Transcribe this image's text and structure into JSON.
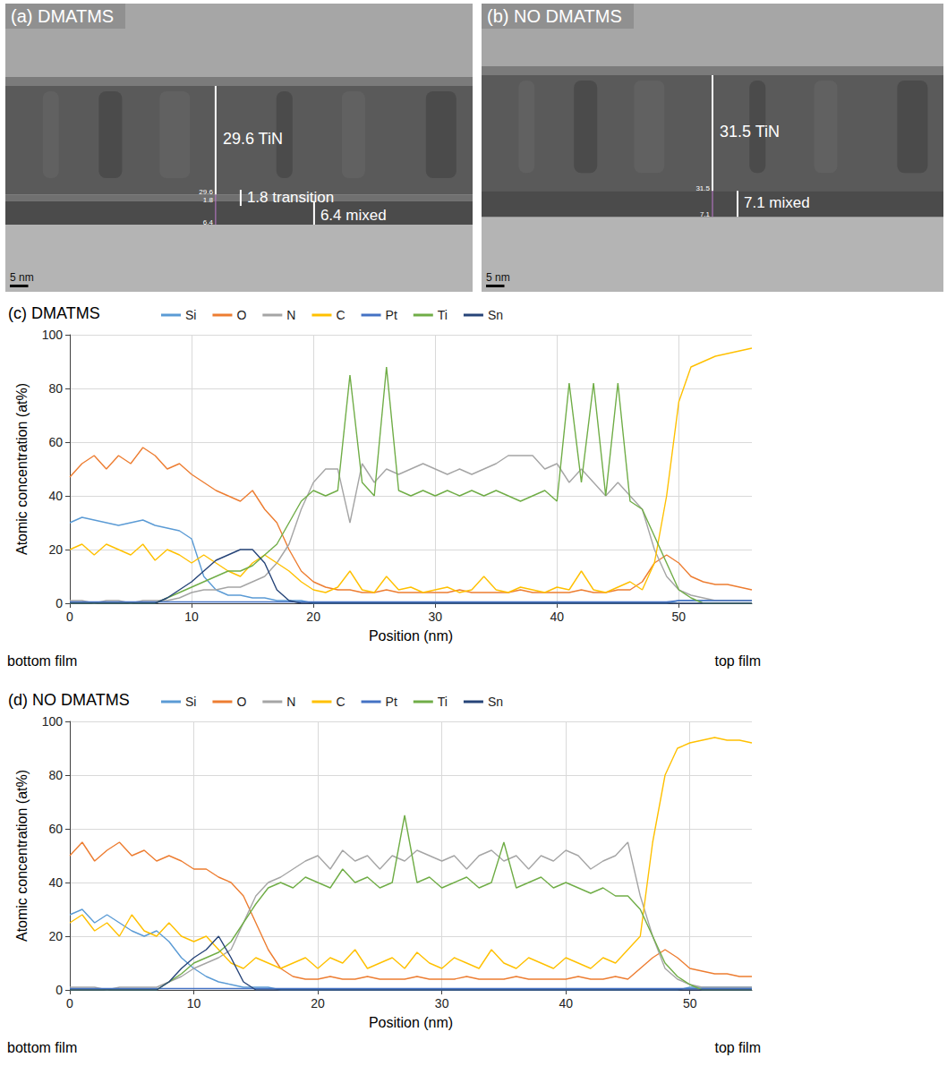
{
  "images": [
    {
      "title": "(a) DMATMS",
      "scale_bar": {
        "value": 5,
        "label": "5 nm"
      },
      "layers": [
        {
          "label": "29.6 TiN",
          "thickness": 29.6
        },
        {
          "label": "1.8 transition",
          "thickness": 1.8
        },
        {
          "label": "6.4 mixed",
          "thickness": 6.4
        }
      ]
    },
    {
      "title": "(b) NO DMATMS",
      "scale_bar": {
        "value": 5,
        "label": "5 nm"
      },
      "layers": [
        {
          "label": "31.5 TiN",
          "thickness": 31.5
        },
        {
          "label": "7.1 mixed",
          "thickness": 7.1
        }
      ]
    }
  ],
  "chart_data": [
    {
      "type": "line",
      "title": "(c) DMATMS",
      "x_label": "Position (nm)",
      "y_label": "Atomic concentration (at%)",
      "annotations": [
        "bottom film",
        "top film"
      ],
      "xlim": [
        0,
        56
      ],
      "xticks": [
        0,
        10,
        20,
        30,
        40,
        50
      ],
      "ylim": [
        0,
        100
      ],
      "yticks": [
        0,
        20,
        40,
        60,
        80,
        100
      ],
      "grid": true,
      "legend": "top",
      "x": [
        0,
        1,
        2,
        3,
        4,
        5,
        6,
        7,
        8,
        9,
        10,
        11,
        12,
        13,
        14,
        15,
        16,
        17,
        18,
        19,
        20,
        21,
        22,
        23,
        24,
        25,
        26,
        27,
        28,
        29,
        30,
        31,
        32,
        33,
        34,
        35,
        36,
        37,
        38,
        39,
        40,
        41,
        42,
        43,
        44,
        45,
        46,
        47,
        48,
        49,
        50,
        51,
        52,
        53,
        54,
        55,
        56
      ],
      "series": [
        {
          "name": "Si",
          "color": "#5b9bd5",
          "values": [
            30,
            32,
            31,
            30,
            29,
            30,
            31,
            29,
            28,
            27,
            24,
            10,
            5,
            3,
            3,
            2,
            2,
            1,
            1,
            1,
            0,
            0,
            0,
            0,
            0,
            0,
            0,
            0,
            0,
            0,
            0,
            0,
            0,
            0,
            0,
            0,
            0,
            0,
            0,
            0,
            0,
            0,
            0,
            0,
            0,
            0,
            0,
            0,
            0,
            0,
            1,
            1,
            1,
            1,
            1,
            1,
            1
          ]
        },
        {
          "name": "O",
          "color": "#ed7d31",
          "values": [
            47,
            52,
            55,
            50,
            55,
            52,
            58,
            55,
            50,
            52,
            48,
            45,
            42,
            40,
            38,
            42,
            35,
            30,
            20,
            12,
            8,
            6,
            5,
            5,
            4,
            4,
            5,
            4,
            4,
            4,
            4,
            4,
            5,
            4,
            4,
            4,
            4,
            5,
            4,
            4,
            4,
            4,
            5,
            4,
            4,
            5,
            5,
            8,
            15,
            18,
            15,
            10,
            8,
            7,
            7,
            6,
            5
          ]
        },
        {
          "name": "N",
          "color": "#a5a5a5",
          "values": [
            1,
            1,
            0,
            1,
            1,
            0,
            1,
            1,
            1,
            2,
            4,
            5,
            5,
            6,
            6,
            8,
            10,
            15,
            22,
            35,
            45,
            50,
            50,
            30,
            52,
            45,
            50,
            48,
            50,
            52,
            50,
            48,
            50,
            48,
            50,
            52,
            55,
            55,
            55,
            50,
            52,
            45,
            50,
            45,
            40,
            45,
            40,
            35,
            20,
            10,
            5,
            3,
            2,
            1,
            1,
            1,
            1
          ]
        },
        {
          "name": "C",
          "color": "#ffc000",
          "values": [
            20,
            22,
            18,
            22,
            20,
            18,
            22,
            16,
            20,
            18,
            15,
            18,
            15,
            12,
            10,
            15,
            18,
            15,
            12,
            8,
            5,
            4,
            6,
            12,
            5,
            4,
            10,
            5,
            6,
            4,
            5,
            6,
            4,
            5,
            10,
            5,
            4,
            6,
            5,
            4,
            6,
            5,
            12,
            5,
            4,
            6,
            8,
            5,
            15,
            40,
            75,
            88,
            90,
            92,
            93,
            94,
            95
          ]
        },
        {
          "name": "Pt",
          "color": "#4472c4",
          "values": [
            0.5,
            0.5,
            0.5,
            0.5,
            0.5,
            0.5,
            0.5,
            0.5,
            0.5,
            0.5,
            0.5,
            0.5,
            0.5,
            0.5,
            0.5,
            0.5,
            0.5,
            0.5,
            0.5,
            0.5,
            0.5,
            0.5,
            0.5,
            0.5,
            0.5,
            0.5,
            0.5,
            0.5,
            0.5,
            0.5,
            0.5,
            0.5,
            0.5,
            0.5,
            0.5,
            0.5,
            0.5,
            0.5,
            0.5,
            0.5,
            0.5,
            0.5,
            0.5,
            0.5,
            0.5,
            0.5,
            0.5,
            0.5,
            0.5,
            0.5,
            1,
            1,
            1,
            1,
            1,
            1,
            1
          ]
        },
        {
          "name": "Ti",
          "color": "#70ad47",
          "values": [
            0,
            0,
            0,
            0,
            0,
            0,
            0,
            0,
            2,
            4,
            6,
            8,
            10,
            12,
            12,
            14,
            18,
            22,
            30,
            38,
            42,
            40,
            42,
            85,
            45,
            40,
            88,
            42,
            40,
            42,
            40,
            42,
            40,
            42,
            40,
            42,
            40,
            38,
            40,
            42,
            38,
            82,
            45,
            82,
            40,
            82,
            38,
            35,
            25,
            15,
            5,
            2,
            0,
            0,
            0,
            0,
            0
          ]
        },
        {
          "name": "Sn",
          "color": "#264478",
          "values": [
            0,
            0,
            0,
            0,
            0,
            0,
            0,
            0,
            2,
            5,
            8,
            12,
            16,
            18,
            20,
            20,
            15,
            5,
            1,
            0,
            0,
            0,
            0,
            0,
            0,
            0,
            0,
            0,
            0,
            0,
            0,
            0,
            0,
            0,
            0,
            0,
            0,
            0,
            0,
            0,
            0,
            0,
            0,
            0,
            0,
            0,
            0,
            0,
            0,
            0,
            0,
            0,
            0,
            0,
            0,
            0,
            0
          ]
        }
      ]
    },
    {
      "type": "line",
      "title": "(d) NO DMATMS",
      "x_label": "Position (nm)",
      "y_label": "Atomic concentration (at%)",
      "annotations": [
        "bottom film",
        "top film"
      ],
      "xlim": [
        0,
        55
      ],
      "xticks": [
        0,
        10,
        20,
        30,
        40,
        50
      ],
      "ylim": [
        0,
        100
      ],
      "yticks": [
        0,
        20,
        40,
        60,
        80,
        100
      ],
      "grid": true,
      "legend": "top",
      "x": [
        0,
        1,
        2,
        3,
        4,
        5,
        6,
        7,
        8,
        9,
        10,
        11,
        12,
        13,
        14,
        15,
        16,
        17,
        18,
        19,
        20,
        21,
        22,
        23,
        24,
        25,
        26,
        27,
        28,
        29,
        30,
        31,
        32,
        33,
        34,
        35,
        36,
        37,
        38,
        39,
        40,
        41,
        42,
        43,
        44,
        45,
        46,
        47,
        48,
        49,
        50,
        51,
        52,
        53,
        54,
        55
      ],
      "series": [
        {
          "name": "Si",
          "color": "#5b9bd5",
          "values": [
            28,
            30,
            25,
            28,
            25,
            22,
            20,
            22,
            18,
            12,
            8,
            5,
            3,
            2,
            1,
            1,
            1,
            0,
            0,
            0,
            0,
            0,
            0,
            0,
            0,
            0,
            0,
            0,
            0,
            0,
            0,
            0,
            0,
            0,
            0,
            0,
            0,
            0,
            0,
            0,
            0,
            0,
            0,
            0,
            0,
            0,
            0,
            0,
            0,
            0,
            1,
            1,
            1,
            1,
            1,
            1
          ]
        },
        {
          "name": "O",
          "color": "#ed7d31",
          "values": [
            50,
            55,
            48,
            52,
            55,
            50,
            52,
            48,
            50,
            48,
            45,
            45,
            42,
            40,
            35,
            25,
            15,
            8,
            5,
            4,
            4,
            5,
            4,
            4,
            5,
            4,
            4,
            4,
            5,
            4,
            4,
            4,
            5,
            4,
            4,
            4,
            5,
            4,
            4,
            4,
            4,
            5,
            4,
            4,
            5,
            4,
            8,
            12,
            15,
            12,
            8,
            7,
            6,
            6,
            5,
            5
          ]
        },
        {
          "name": "N",
          "color": "#a5a5a5",
          "values": [
            1,
            1,
            1,
            0,
            1,
            1,
            1,
            1,
            3,
            5,
            8,
            10,
            12,
            15,
            25,
            35,
            40,
            42,
            45,
            48,
            50,
            45,
            52,
            48,
            50,
            45,
            50,
            48,
            52,
            50,
            48,
            50,
            45,
            50,
            52,
            48,
            50,
            45,
            50,
            48,
            52,
            50,
            45,
            48,
            50,
            55,
            35,
            20,
            8,
            4,
            2,
            1,
            1,
            1,
            1,
            1
          ]
        },
        {
          "name": "C",
          "color": "#ffc000",
          "values": [
            25,
            28,
            22,
            25,
            20,
            28,
            22,
            20,
            25,
            20,
            18,
            20,
            15,
            10,
            8,
            12,
            10,
            8,
            10,
            12,
            8,
            12,
            10,
            15,
            8,
            10,
            12,
            8,
            14,
            10,
            8,
            12,
            10,
            8,
            15,
            10,
            8,
            12,
            10,
            8,
            12,
            10,
            8,
            12,
            10,
            15,
            20,
            55,
            80,
            90,
            92,
            93,
            94,
            93,
            93,
            92
          ]
        },
        {
          "name": "Pt",
          "color": "#4472c4",
          "values": [
            0.5,
            0.5,
            0.5,
            0.5,
            0.5,
            0.5,
            0.5,
            0.5,
            0.5,
            0.5,
            0.5,
            0.5,
            0.5,
            0.5,
            0.5,
            0.5,
            0.5,
            0.5,
            0.5,
            0.5,
            0.5,
            0.5,
            0.5,
            0.5,
            0.5,
            0.5,
            0.5,
            0.5,
            0.5,
            0.5,
            0.5,
            0.5,
            0.5,
            0.5,
            0.5,
            0.5,
            0.5,
            0.5,
            0.5,
            0.5,
            0.5,
            0.5,
            0.5,
            0.5,
            0.5,
            0.5,
            0.5,
            0.5,
            0.5,
            0.5,
            0.5,
            0.5,
            0.5,
            0.5,
            0.5,
            0.5
          ]
        },
        {
          "name": "Ti",
          "color": "#70ad47",
          "values": [
            0,
            0,
            0,
            0,
            0,
            0,
            0,
            0,
            3,
            6,
            10,
            12,
            14,
            18,
            25,
            32,
            38,
            40,
            38,
            42,
            40,
            38,
            45,
            40,
            42,
            38,
            40,
            65,
            40,
            42,
            38,
            40,
            42,
            38,
            40,
            55,
            38,
            40,
            42,
            38,
            40,
            38,
            36,
            38,
            35,
            35,
            30,
            20,
            10,
            5,
            2,
            0,
            0,
            0,
            0,
            0
          ]
        },
        {
          "name": "Sn",
          "color": "#264478",
          "values": [
            0,
            0,
            0,
            0,
            0,
            0,
            0,
            0,
            3,
            8,
            12,
            15,
            20,
            12,
            3,
            0,
            0,
            0,
            0,
            0,
            0,
            0,
            0,
            0,
            0,
            0,
            0,
            0,
            0,
            0,
            0,
            0,
            0,
            0,
            0,
            0,
            0,
            0,
            0,
            0,
            0,
            0,
            0,
            0,
            0,
            0,
            0,
            0,
            0,
            0,
            0,
            0,
            0,
            0,
            0,
            0
          ]
        }
      ]
    }
  ]
}
